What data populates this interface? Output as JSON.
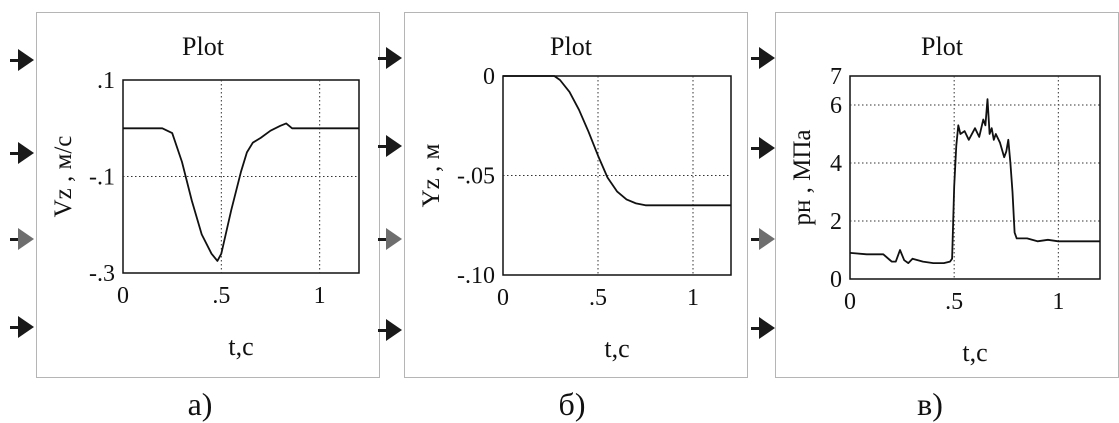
{
  "panels": [
    {
      "caption": "а)",
      "chart_data": {
        "type": "line",
        "title": "Plot",
        "xlabel": "t,c",
        "ylabel": "Vz , м/с",
        "xlim": [
          0,
          1.2
        ],
        "ylim": [
          -0.3,
          0.1
        ],
        "xticks": [
          {
            "v": 0,
            "label": "0"
          },
          {
            "v": 0.5,
            "label": ".5"
          },
          {
            "v": 1,
            "label": "1"
          }
        ],
        "yticks": [
          {
            "v": 0.1,
            "label": ".1"
          },
          {
            "v": -0.1,
            "label": "-.1"
          },
          {
            "v": -0.3,
            "label": "-.3"
          }
        ],
        "grid_x": [
          0.5,
          1
        ],
        "grid_y": [
          -0.1
        ],
        "series": [
          {
            "x": [
              0,
              0.2,
              0.25,
              0.3,
              0.35,
              0.4,
              0.45,
              0.48,
              0.5,
              0.55,
              0.6,
              0.63,
              0.66,
              0.7,
              0.75,
              0.8,
              0.83,
              0.86,
              1.2
            ],
            "y": [
              0,
              0,
              -0.01,
              -0.07,
              -0.15,
              -0.22,
              -0.26,
              -0.275,
              -0.26,
              -0.17,
              -0.09,
              -0.05,
              -0.03,
              -0.02,
              -0.005,
              0.005,
              0.01,
              0,
              0
            ]
          }
        ]
      }
    },
    {
      "caption": "б)",
      "chart_data": {
        "type": "line",
        "title": "Plot",
        "xlabel": "t,c",
        "ylabel": "Yz , м",
        "xlim": [
          0,
          1.2
        ],
        "ylim": [
          -0.1,
          0
        ],
        "xticks": [
          {
            "v": 0,
            "label": "0"
          },
          {
            "v": 0.5,
            "label": ".5"
          },
          {
            "v": 1,
            "label": "1"
          }
        ],
        "yticks": [
          {
            "v": 0,
            "label": "0"
          },
          {
            "v": -0.05,
            "label": "-.05"
          },
          {
            "v": -0.1,
            "label": "-.10"
          }
        ],
        "grid_x": [
          0.5,
          1
        ],
        "grid_y": [
          -0.05
        ],
        "series": [
          {
            "x": [
              0,
              0.27,
              0.3,
              0.35,
              0.4,
              0.45,
              0.5,
              0.55,
              0.6,
              0.65,
              0.7,
              0.75,
              0.8,
              1.2
            ],
            "y": [
              0,
              0,
              -0.002,
              -0.008,
              -0.017,
              -0.028,
              -0.04,
              -0.051,
              -0.058,
              -0.062,
              -0.064,
              -0.065,
              -0.065,
              -0.065
            ]
          }
        ]
      }
    },
    {
      "caption": "в)",
      "chart_data": {
        "type": "line",
        "title": "Plot",
        "xlabel": "t,c",
        "ylabel": "pн , МПа",
        "xlim": [
          0,
          1.2
        ],
        "ylim": [
          0,
          7
        ],
        "xticks": [
          {
            "v": 0,
            "label": "0"
          },
          {
            "v": 0.5,
            "label": ".5"
          },
          {
            "v": 1,
            "label": "1"
          }
        ],
        "yticks": [
          {
            "v": 7,
            "label": "7"
          },
          {
            "v": 6,
            "label": "6"
          },
          {
            "v": 4,
            "label": "4"
          },
          {
            "v": 2,
            "label": "2"
          },
          {
            "v": 0,
            "label": "0"
          }
        ],
        "grid_x": [
          0.5,
          1
        ],
        "grid_y": [
          6,
          4,
          2
        ],
        "series": [
          {
            "x": [
              0,
              0.08,
              0.16,
              0.2,
              0.22,
              0.24,
              0.26,
              0.28,
              0.3,
              0.35,
              0.4,
              0.45,
              0.48,
              0.49,
              0.5,
              0.51,
              0.52,
              0.53,
              0.55,
              0.57,
              0.6,
              0.62,
              0.64,
              0.65,
              0.66,
              0.67,
              0.68,
              0.69,
              0.7,
              0.72,
              0.74,
              0.75,
              0.76,
              0.77,
              0.78,
              0.79,
              0.8,
              0.85,
              0.9,
              0.95,
              1.0,
              1.2
            ],
            "y": [
              0.9,
              0.85,
              0.85,
              0.6,
              0.6,
              1.0,
              0.65,
              0.55,
              0.7,
              0.6,
              0.55,
              0.55,
              0.6,
              0.7,
              3.2,
              4.6,
              5.3,
              5.0,
              5.1,
              4.8,
              5.2,
              4.9,
              5.5,
              5.3,
              6.2,
              5.0,
              5.2,
              4.8,
              5.0,
              4.7,
              4.2,
              4.4,
              4.8,
              4.0,
              3.0,
              1.6,
              1.4,
              1.4,
              1.3,
              1.35,
              1.3,
              1.3
            ]
          }
        ]
      }
    }
  ]
}
